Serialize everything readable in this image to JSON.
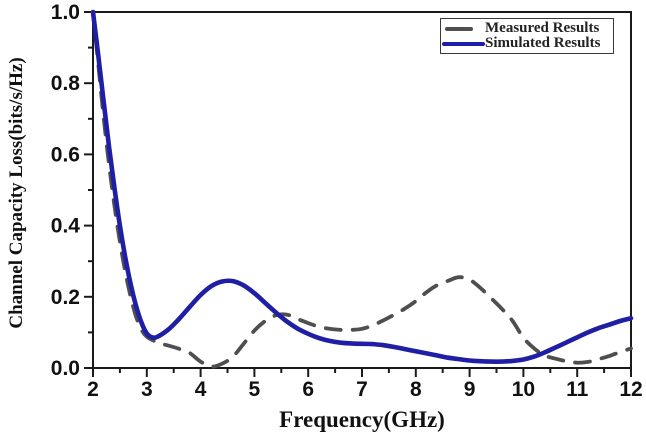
{
  "figure": {
    "background": "#ffffff"
  },
  "colors": {
    "axis": "#1a1a1a",
    "text": "#111111",
    "measured": "#4f4f4f",
    "simulated": "#1f1fa6"
  },
  "chart_data": {
    "type": "line",
    "title": "",
    "xlabel": "Frequency(GHz)",
    "ylabel": "Channel Capacity Loss(bits/s/Hz)",
    "xlim": [
      2,
      12
    ],
    "ylim": [
      0,
      1
    ],
    "grid": false,
    "legend_position": "top-right",
    "xticks": {
      "major": [
        {
          "v": 2,
          "label": "2"
        },
        {
          "v": 3,
          "label": "3"
        },
        {
          "v": 4,
          "label": "4"
        },
        {
          "v": 5,
          "label": "5"
        },
        {
          "v": 6,
          "label": "6"
        },
        {
          "v": 7,
          "label": "7"
        },
        {
          "v": 8,
          "label": "8"
        },
        {
          "v": 9,
          "label": "9"
        },
        {
          "v": 10,
          "label": "10"
        },
        {
          "v": 11,
          "label": "11"
        },
        {
          "v": 12,
          "label": "12"
        }
      ],
      "minor": [
        2.5,
        3.5,
        4.5,
        5.5,
        6.5,
        7.5,
        8.5,
        9.5,
        10.5,
        11.5
      ]
    },
    "yticks": {
      "major": [
        {
          "v": 0.0,
          "label": "0.0"
        },
        {
          "v": 0.2,
          "label": "0.2"
        },
        {
          "v": 0.4,
          "label": "0.4"
        },
        {
          "v": 0.6,
          "label": "0.6"
        },
        {
          "v": 0.8,
          "label": "0.8"
        },
        {
          "v": 1.0,
          "label": "1.0"
        }
      ],
      "minor": [
        0.1,
        0.3,
        0.5,
        0.7,
        0.9
      ]
    },
    "series": [
      {
        "name": "Measured Results",
        "style": "dashed",
        "color": "#4f4f4f",
        "points": [
          [
            2.0,
            1.0
          ],
          [
            2.1,
            0.85
          ],
          [
            2.2,
            0.7
          ],
          [
            2.3,
            0.57
          ],
          [
            2.4,
            0.455
          ],
          [
            2.5,
            0.355
          ],
          [
            2.6,
            0.27
          ],
          [
            2.7,
            0.2
          ],
          [
            2.8,
            0.145
          ],
          [
            2.9,
            0.108
          ],
          [
            3.0,
            0.088
          ],
          [
            3.2,
            0.072
          ],
          [
            3.4,
            0.063
          ],
          [
            3.6,
            0.054
          ],
          [
            3.8,
            0.042
          ],
          [
            4.0,
            0.018
          ],
          [
            4.2,
            0.004
          ],
          [
            4.4,
            0.012
          ],
          [
            4.6,
            0.032
          ],
          [
            4.8,
            0.068
          ],
          [
            5.0,
            0.105
          ],
          [
            5.2,
            0.132
          ],
          [
            5.4,
            0.148
          ],
          [
            5.6,
            0.15
          ],
          [
            5.8,
            0.138
          ],
          [
            6.0,
            0.126
          ],
          [
            6.2,
            0.116
          ],
          [
            6.4,
            0.11
          ],
          [
            6.6,
            0.107
          ],
          [
            6.8,
            0.107
          ],
          [
            7.0,
            0.11
          ],
          [
            7.2,
            0.12
          ],
          [
            7.4,
            0.134
          ],
          [
            7.6,
            0.15
          ],
          [
            7.8,
            0.167
          ],
          [
            8.0,
            0.188
          ],
          [
            8.2,
            0.213
          ],
          [
            8.4,
            0.233
          ],
          [
            8.6,
            0.245
          ],
          [
            8.8,
            0.255
          ],
          [
            9.0,
            0.248
          ],
          [
            9.2,
            0.225
          ],
          [
            9.4,
            0.196
          ],
          [
            9.6,
            0.166
          ],
          [
            9.8,
            0.132
          ],
          [
            10.0,
            0.085
          ],
          [
            10.2,
            0.055
          ],
          [
            10.4,
            0.035
          ],
          [
            10.6,
            0.026
          ],
          [
            10.8,
            0.019
          ],
          [
            11.0,
            0.015
          ],
          [
            11.2,
            0.017
          ],
          [
            11.4,
            0.025
          ],
          [
            11.6,
            0.034
          ],
          [
            11.8,
            0.045
          ],
          [
            12.0,
            0.055
          ]
        ]
      },
      {
        "name": "Simulated Results",
        "style": "solid",
        "color": "#1f1fa6",
        "points": [
          [
            2.0,
            1.0
          ],
          [
            2.1,
            0.875
          ],
          [
            2.2,
            0.745
          ],
          [
            2.3,
            0.62
          ],
          [
            2.4,
            0.505
          ],
          [
            2.5,
            0.4
          ],
          [
            2.6,
            0.31
          ],
          [
            2.7,
            0.235
          ],
          [
            2.8,
            0.175
          ],
          [
            2.9,
            0.128
          ],
          [
            3.0,
            0.097
          ],
          [
            3.1,
            0.086
          ],
          [
            3.2,
            0.088
          ],
          [
            3.4,
            0.108
          ],
          [
            3.6,
            0.138
          ],
          [
            3.8,
            0.172
          ],
          [
            4.0,
            0.205
          ],
          [
            4.2,
            0.23
          ],
          [
            4.4,
            0.243
          ],
          [
            4.6,
            0.244
          ],
          [
            4.8,
            0.232
          ],
          [
            5.0,
            0.21
          ],
          [
            5.2,
            0.183
          ],
          [
            5.4,
            0.156
          ],
          [
            5.6,
            0.131
          ],
          [
            5.8,
            0.111
          ],
          [
            6.0,
            0.096
          ],
          [
            6.2,
            0.084
          ],
          [
            6.4,
            0.076
          ],
          [
            6.6,
            0.071
          ],
          [
            6.8,
            0.069
          ],
          [
            7.0,
            0.068
          ],
          [
            7.2,
            0.067
          ],
          [
            7.4,
            0.064
          ],
          [
            7.6,
            0.059
          ],
          [
            7.8,
            0.053
          ],
          [
            8.0,
            0.047
          ],
          [
            8.2,
            0.041
          ],
          [
            8.4,
            0.035
          ],
          [
            8.6,
            0.029
          ],
          [
            8.8,
            0.025
          ],
          [
            9.0,
            0.021
          ],
          [
            9.2,
            0.019
          ],
          [
            9.4,
            0.018
          ],
          [
            9.6,
            0.018
          ],
          [
            9.8,
            0.02
          ],
          [
            10.0,
            0.024
          ],
          [
            10.2,
            0.032
          ],
          [
            10.4,
            0.044
          ],
          [
            10.6,
            0.058
          ],
          [
            10.8,
            0.072
          ],
          [
            11.0,
            0.086
          ],
          [
            11.2,
            0.1
          ],
          [
            11.4,
            0.112
          ],
          [
            11.6,
            0.122
          ],
          [
            11.8,
            0.132
          ],
          [
            12.0,
            0.14
          ]
        ]
      }
    ]
  }
}
